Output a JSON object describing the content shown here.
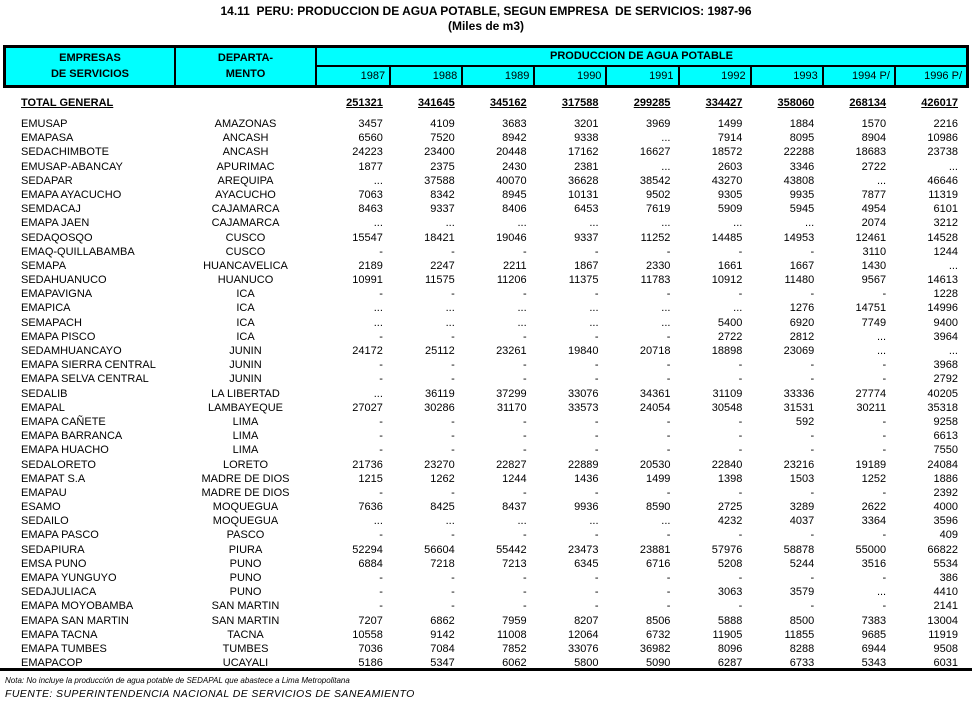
{
  "title": "14.11  PERU: PRODUCCION DE AGUA POTABLE, SEGUN EMPRESA  DE SERVICIOS: 1987-96",
  "subtitle": "(Miles de m3)",
  "colors": {
    "header_bg": "#00FFFF",
    "border": "#000000"
  },
  "header": {
    "col1_line1": "EMPRESAS",
    "col1_line2": "DE SERVICIOS",
    "col2_line1": "DEPARTA-",
    "col2_line2": "MENTO",
    "group": "PRODUCCION DE AGUA POTABLE",
    "years": [
      "1987",
      "1988",
      "1989",
      "1990",
      "1991",
      "1992",
      "1993",
      "1994 P/",
      "1996 P/"
    ]
  },
  "total": {
    "label": "TOTAL GENERAL",
    "values": [
      "251321",
      "341645",
      "345162",
      "317588",
      "299285",
      "334427",
      "358060",
      "268134",
      "426017"
    ]
  },
  "rows": [
    {
      "name": "EMUSAP",
      "dept": "AMAZONAS",
      "values": [
        "3457",
        "4109",
        "3683",
        "3201",
        "3969",
        "1499",
        "1884",
        "1570",
        "2216"
      ]
    },
    {
      "name": "EMAPASA",
      "dept": "ANCASH",
      "values": [
        "6560",
        "7520",
        "8942",
        "9338",
        "...",
        "7914",
        "8095",
        "8904",
        "10986"
      ]
    },
    {
      "name": "SEDACHIMBOTE",
      "dept": "ANCASH",
      "values": [
        "24223",
        "23400",
        "20448",
        "17162",
        "16627",
        "18572",
        "22288",
        "18683",
        "23738"
      ]
    },
    {
      "name": "EMUSAP-ABANCAY",
      "dept": "APURIMAC",
      "values": [
        "1877",
        "2375",
        "2430",
        "2381",
        "...",
        "2603",
        "3346",
        "2722",
        "..."
      ]
    },
    {
      "name": "SEDAPAR",
      "dept": "AREQUIPA",
      "values": [
        "...",
        "37588",
        "40070",
        "36628",
        "38542",
        "43270",
        "43808",
        "...",
        "46646"
      ]
    },
    {
      "name": "EMAPA AYACUCHO",
      "dept": "AYACUCHO",
      "values": [
        "7063",
        "8342",
        "8945",
        "10131",
        "9502",
        "9305",
        "9935",
        "7877",
        "11319"
      ]
    },
    {
      "name": "SEMDACAJ",
      "dept": "CAJAMARCA",
      "values": [
        "8463",
        "9337",
        "8406",
        "6453",
        "7619",
        "5909",
        "5945",
        "4954",
        "6101"
      ]
    },
    {
      "name": "EMAPA JAEN",
      "dept": "CAJAMARCA",
      "values": [
        "...",
        "...",
        "...",
        "...",
        "...",
        "...",
        "...",
        "2074",
        "3212"
      ]
    },
    {
      "name": "SEDAQOSQO",
      "dept": "CUSCO",
      "values": [
        "15547",
        "18421",
        "19046",
        "9337",
        "11252",
        "14485",
        "14953",
        "12461",
        "14528"
      ]
    },
    {
      "name": "EMAQ-QUILLABAMBA",
      "dept": "CUSCO",
      "values": [
        "-",
        "-",
        "-",
        "-",
        "-",
        "-",
        "-",
        "3110",
        "1244"
      ]
    },
    {
      "name": "SEMAPA",
      "dept": "HUANCAVELICA",
      "values": [
        "2189",
        "2247",
        "2211",
        "1867",
        "2330",
        "1661",
        "1667",
        "1430",
        "..."
      ]
    },
    {
      "name": "SEDAHUANUCO",
      "dept": "HUANUCO",
      "values": [
        "10991",
        "11575",
        "11206",
        "11375",
        "11783",
        "10912",
        "11480",
        "9567",
        "14613"
      ]
    },
    {
      "name": "EMAPAVIGNA",
      "dept": "ICA",
      "values": [
        "-",
        "-",
        "-",
        "-",
        "-",
        "-",
        "-",
        "-",
        "1228"
      ]
    },
    {
      "name": "EMAPICA",
      "dept": "ICA",
      "values": [
        "...",
        "...",
        "...",
        "...",
        "...",
        "...",
        "1276",
        "14751",
        "14996"
      ]
    },
    {
      "name": "SEMAPACH",
      "dept": "ICA",
      "values": [
        "...",
        "...",
        "...",
        "...",
        "...",
        "5400",
        "6920",
        "7749",
        "9400"
      ]
    },
    {
      "name": "EMAPA PISCO",
      "dept": "ICA",
      "values": [
        "-",
        "-",
        "-",
        "-",
        "-",
        "2722",
        "2812",
        "...",
        "3964"
      ]
    },
    {
      "name": "SEDAMHUANCAYO",
      "dept": "JUNIN",
      "values": [
        "24172",
        "25112",
        "23261",
        "19840",
        "20718",
        "18898",
        "23069",
        "...",
        "..."
      ]
    },
    {
      "name": "EMAPA SIERRA CENTRAL",
      "dept": "JUNIN",
      "values": [
        "-",
        "-",
        "-",
        "-",
        "-",
        "-",
        "-",
        "-",
        "3968"
      ]
    },
    {
      "name": "EMAPA SELVA CENTRAL",
      "dept": "JUNIN",
      "values": [
        "-",
        "-",
        "-",
        "-",
        "-",
        "-",
        "-",
        "-",
        "2792"
      ]
    },
    {
      "name": "SEDALIB",
      "dept": "LA LIBERTAD",
      "values": [
        "...",
        "36119",
        "37299",
        "33076",
        "34361",
        "31109",
        "33336",
        "27774",
        "40205"
      ]
    },
    {
      "name": "EMAPAL",
      "dept": "LAMBAYEQUE",
      "values": [
        "27027",
        "30286",
        "31170",
        "33573",
        "24054",
        "30548",
        "31531",
        "30211",
        "35318"
      ]
    },
    {
      "name": "EMAPA CAÑETE",
      "dept": "LIMA",
      "values": [
        "-",
        "-",
        "-",
        "-",
        "-",
        "-",
        "592",
        "-",
        "9258"
      ]
    },
    {
      "name": "EMAPA BARRANCA",
      "dept": "LIMA",
      "values": [
        "-",
        "-",
        "-",
        "-",
        "-",
        "-",
        "-",
        "-",
        "6613"
      ]
    },
    {
      "name": "EMAPA HUACHO",
      "dept": "LIMA",
      "values": [
        "-",
        "-",
        "-",
        "-",
        "-",
        "-",
        "-",
        "-",
        "7550"
      ]
    },
    {
      "name": "SEDALORETO",
      "dept": "LORETO",
      "values": [
        "21736",
        "23270",
        "22827",
        "22889",
        "20530",
        "22840",
        "23216",
        "19189",
        "24084"
      ]
    },
    {
      "name": "EMAPAT S.A",
      "dept": "MADRE DE DIOS",
      "values": [
        "1215",
        "1262",
        "1244",
        "1436",
        "1499",
        "1398",
        "1503",
        "1252",
        "1886"
      ]
    },
    {
      "name": "EMAPAU",
      "dept": "MADRE DE DIOS",
      "values": [
        "-",
        "-",
        "-",
        "-",
        "-",
        "-",
        "-",
        "-",
        "2392"
      ]
    },
    {
      "name": "ESAMO",
      "dept": "MOQUEGUA",
      "values": [
        "7636",
        "8425",
        "8437",
        "9936",
        "8590",
        "2725",
        "3289",
        "2622",
        "4000"
      ]
    },
    {
      "name": "SEDAILO",
      "dept": "MOQUEGUA",
      "values": [
        "...",
        "...",
        "...",
        "...",
        "...",
        "4232",
        "4037",
        "3364",
        "3596"
      ]
    },
    {
      "name": "EMAPA PASCO",
      "dept": "PASCO",
      "values": [
        "-",
        "-",
        "-",
        "-",
        "-",
        "-",
        "-",
        "-",
        "409"
      ]
    },
    {
      "name": "SEDAPIURA",
      "dept": "PIURA",
      "values": [
        "52294",
        "56604",
        "55442",
        "23473",
        "23881",
        "57976",
        "58878",
        "55000",
        "66822"
      ]
    },
    {
      "name": "EMSA PUNO",
      "dept": "PUNO",
      "values": [
        "6884",
        "7218",
        "7213",
        "6345",
        "6716",
        "5208",
        "5244",
        "3516",
        "5534"
      ]
    },
    {
      "name": "EMAPA YUNGUYO",
      "dept": "PUNO",
      "values": [
        "-",
        "-",
        "-",
        "-",
        "-",
        "-",
        "-",
        "-",
        "386"
      ]
    },
    {
      "name": "SEDAJULIACA",
      "dept": "PUNO",
      "values": [
        "-",
        "-",
        "-",
        "-",
        "-",
        "3063",
        "3579",
        "...",
        "4410"
      ]
    },
    {
      "name": "EMAPA MOYOBAMBA",
      "dept": "SAN MARTIN",
      "values": [
        "-",
        "-",
        "-",
        "-",
        "-",
        "-",
        "-",
        "-",
        "2141"
      ]
    },
    {
      "name": "EMAPA SAN MARTIN",
      "dept": "SAN MARTIN",
      "values": [
        "7207",
        "6862",
        "7959",
        "8207",
        "8506",
        "5888",
        "8500",
        "7383",
        "13004"
      ]
    },
    {
      "name": "EMAPA TACNA",
      "dept": "TACNA",
      "values": [
        "10558",
        "9142",
        "11008",
        "12064",
        "6732",
        "11905",
        "11855",
        "9685",
        "11919"
      ]
    },
    {
      "name": "EMAPA TUMBES",
      "dept": "TUMBES",
      "values": [
        "7036",
        "7084",
        "7852",
        "33076",
        "36982",
        "8096",
        "8288",
        "6944",
        "9508"
      ]
    },
    {
      "name": "EMAPACOP",
      "dept": "UCAYALI",
      "values": [
        "5186",
        "5347",
        "6062",
        "5800",
        "5090",
        "6287",
        "6733",
        "5343",
        "6031"
      ]
    }
  ],
  "note": "Nota: No incluye la producción de agua potable de SEDAPAL que abastece a Lima Metropolitana",
  "source": "FUENTE: SUPERINTENDENCIA NACIONAL DE SERVICIOS DE SANEAMIENTO"
}
